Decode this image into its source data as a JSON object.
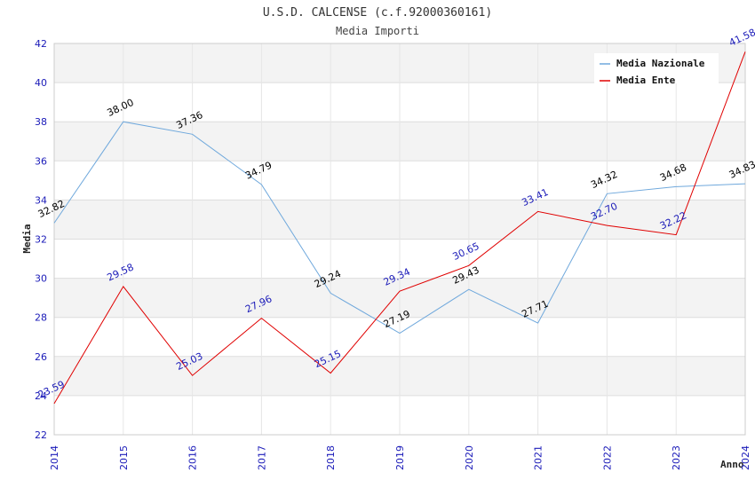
{
  "chart_data": {
    "type": "line",
    "title": "U.S.D. CALCENSE (c.f.92000360161)",
    "subtitle": "Media Importi",
    "xlabel": "Anno",
    "ylabel": "Media",
    "x": [
      "2014",
      "2015",
      "2016",
      "2017",
      "2018",
      "2019",
      "2020",
      "2021",
      "2022",
      "2023",
      "2024"
    ],
    "ylim": [
      22,
      42
    ],
    "yticks": [
      "22",
      "24",
      "26",
      "28",
      "30",
      "32",
      "34",
      "36",
      "38",
      "40",
      "42"
    ],
    "grid": true,
    "legend_position": "top-right",
    "series": [
      {
        "name": "Media Nazionale",
        "color": "#6fa8dc",
        "label_color": "#000000",
        "values": [
          32.82,
          38.0,
          37.36,
          34.79,
          29.24,
          27.19,
          29.43,
          27.71,
          34.32,
          34.68,
          34.83
        ],
        "labels": [
          "32.82",
          "38.00",
          "37.36",
          "34.79",
          "29.24",
          "27.19",
          "29.43",
          "27.71",
          "34.32",
          "34.68",
          "34.83"
        ]
      },
      {
        "name": "Media Ente",
        "color": "#e00000",
        "label_color": "#1a1ab8",
        "values": [
          23.59,
          29.58,
          25.03,
          27.96,
          25.15,
          29.34,
          30.65,
          33.41,
          32.7,
          32.22,
          41.58
        ],
        "labels": [
          "23.59",
          "29.58",
          "25.03",
          "27.96",
          "25.15",
          "29.34",
          "30.65",
          "33.41",
          "32.70",
          "32.22",
          "41.58"
        ]
      }
    ]
  }
}
